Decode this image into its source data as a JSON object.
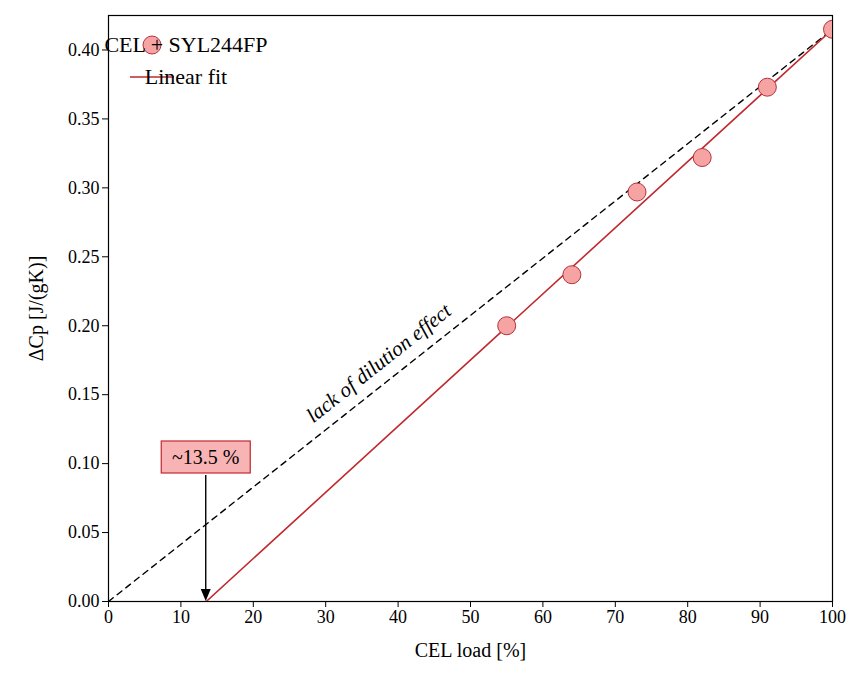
{
  "chart_data": {
    "type": "scatter",
    "x_label": "CEL load [%]",
    "y_label": "ΔCp [J/(gK)]",
    "xlim": [
      0,
      100
    ],
    "ylim": [
      0,
      0.425
    ],
    "xticks": [
      0,
      10,
      20,
      30,
      40,
      50,
      60,
      70,
      80,
      90,
      100
    ],
    "yticks": [
      {
        "value": 0,
        "label": "0.00"
      },
      {
        "value": 0.05,
        "label": "0.05"
      },
      {
        "value": 0.1,
        "label": "0.10"
      },
      {
        "value": 0.15,
        "label": "0.15"
      },
      {
        "value": 0.2,
        "label": "0.20"
      },
      {
        "value": 0.25,
        "label": "0.25"
      },
      {
        "value": 0.3,
        "label": "0.30"
      },
      {
        "value": 0.35,
        "label": "0.35"
      },
      {
        "value": 0.4,
        "label": "0.40"
      }
    ],
    "legend": "top-left",
    "series": [
      {
        "name": "CEL + SYL244FP",
        "type": "scatter",
        "marker": "circle",
        "color": "#f5a3a3",
        "x": [
          55,
          64,
          73,
          82,
          91,
          100
        ],
        "values": [
          0.2,
          0.237,
          0.297,
          0.322,
          0.373,
          0.415
        ]
      },
      {
        "name": "Linear fit",
        "type": "line",
        "line_style": "solid",
        "color": "#c0282d",
        "x": [
          13.5,
          100
        ],
        "values": [
          0,
          0.415
        ]
      }
    ],
    "annotations": [
      {
        "text": "lack of dilution effect",
        "line_style": "dashed",
        "color": "#000000",
        "x": [
          0,
          100
        ],
        "values": [
          0,
          0.415
        ]
      },
      {
        "text": "~13.5 %",
        "x": 13.5,
        "y": 0,
        "color": "#c0282d"
      }
    ]
  }
}
